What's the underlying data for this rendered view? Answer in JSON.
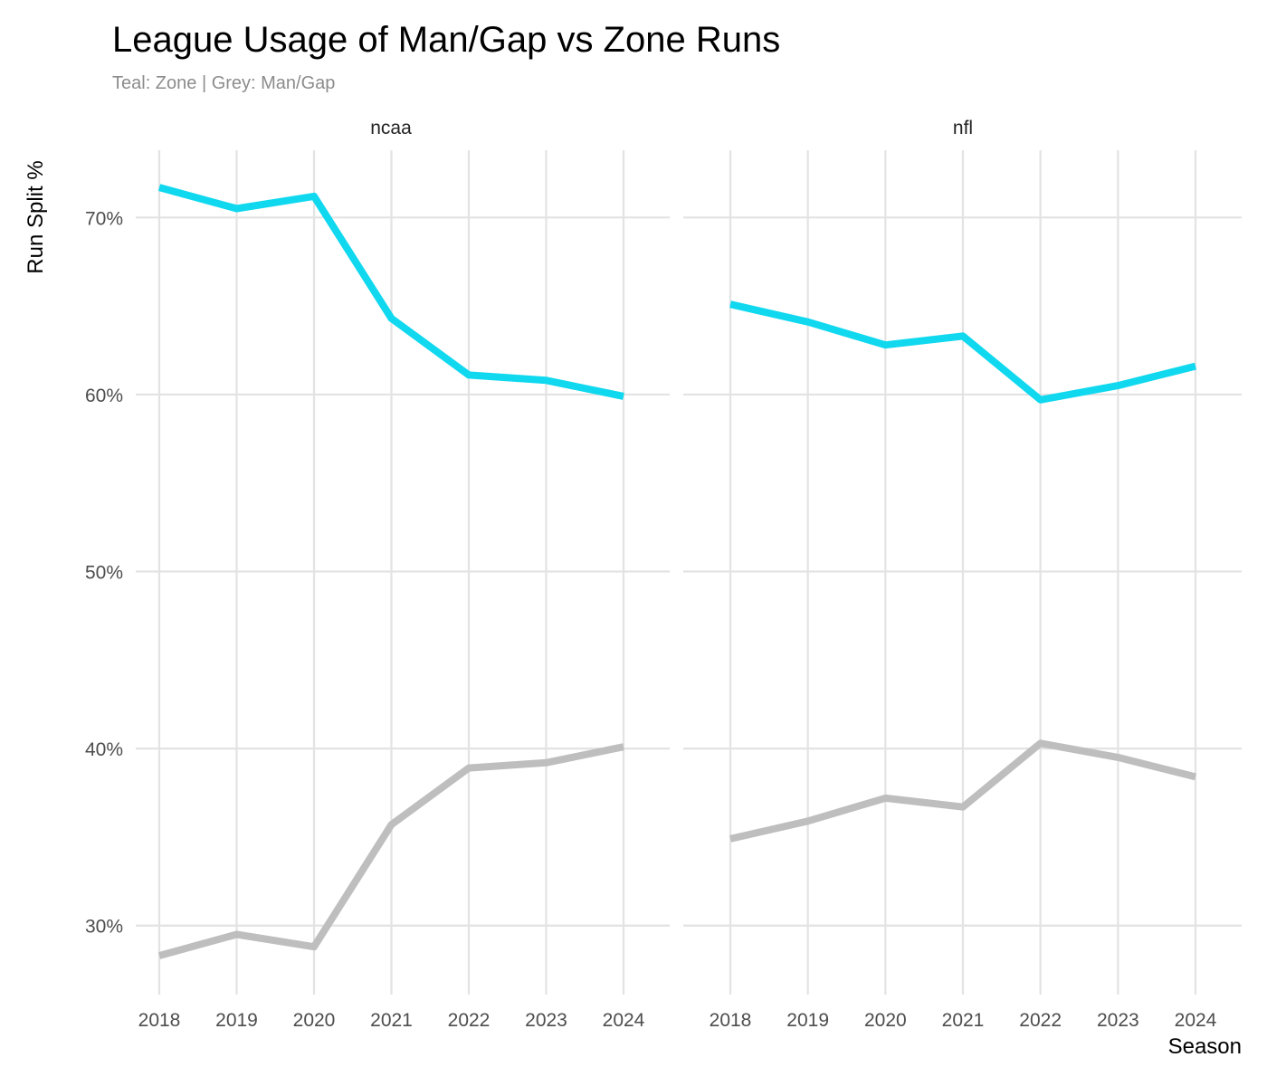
{
  "title": "League Usage of Man/Gap vs Zone Runs",
  "subtitle": "Teal: Zone | Grey: Man/Gap",
  "chart_data": {
    "type": "line",
    "title": "League Usage of Man/Gap vs Zone Runs",
    "subtitle": "Teal: Zone | Grey: Man/Gap",
    "xlabel": "Season",
    "ylabel": "Run Split %",
    "x": [
      2018,
      2019,
      2020,
      2021,
      2022,
      2023,
      2024
    ],
    "x_tick_labels": [
      "2018",
      "2019",
      "2020",
      "2021",
      "2022",
      "2023",
      "2024"
    ],
    "y_ticks": [
      30,
      40,
      50,
      60,
      70
    ],
    "y_tick_labels": [
      "30%",
      "40%",
      "50%",
      "60%",
      "70%"
    ],
    "ylim": [
      26.1,
      73.8
    ],
    "grid": true,
    "legend": "none",
    "colors": {
      "zone": "#0fd8ef",
      "man_gap": "#bebebe"
    },
    "facets": [
      {
        "label": "ncaa",
        "series": [
          {
            "name": "Zone",
            "color": "#0fd8ef",
            "values": [
              71.7,
              70.5,
              71.2,
              64.3,
              61.1,
              60.8,
              59.9
            ]
          },
          {
            "name": "Man/Gap",
            "color": "#bebebe",
            "values": [
              28.3,
              29.5,
              28.8,
              35.7,
              38.9,
              39.2,
              40.1
            ]
          }
        ]
      },
      {
        "label": "nfl",
        "series": [
          {
            "name": "Zone",
            "color": "#0fd8ef",
            "values": [
              65.1,
              64.1,
              62.8,
              63.3,
              59.7,
              60.5,
              61.6
            ]
          },
          {
            "name": "Man/Gap",
            "color": "#bebebe",
            "values": [
              34.9,
              35.9,
              37.2,
              36.7,
              40.3,
              39.5,
              38.4
            ]
          }
        ]
      }
    ]
  }
}
